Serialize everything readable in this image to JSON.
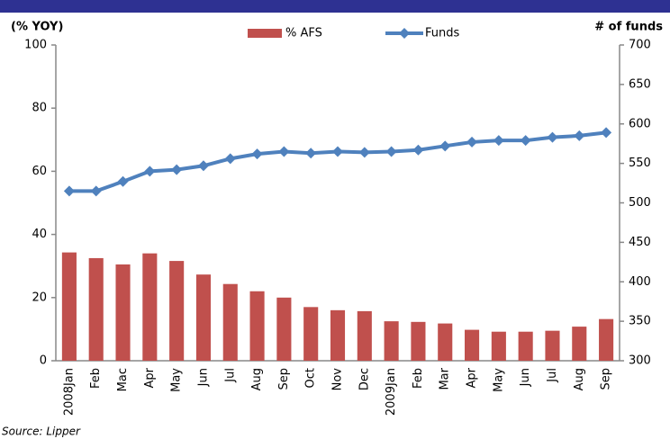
{
  "chart_data": {
    "type": "bar_line",
    "y_label": "(% YOY)",
    "y2_label": "# of funds",
    "source": "Source: Lipper",
    "categories": [
      "2008Jan",
      "Feb",
      "Mac",
      "Apr",
      "May",
      "Jun",
      "Jul",
      "Aug",
      "Sep",
      "Oct",
      "Nov",
      "Dec",
      "2009Jan",
      "Feb",
      "Mar",
      "Apr",
      "May",
      "Jun",
      "Jul",
      "Aug",
      "Sep"
    ],
    "series": [
      {
        "name": "% AFS",
        "type": "bar",
        "color": "#c0504d",
        "values": [
          34.3,
          32.5,
          30.5,
          34,
          31.6,
          27.3,
          24.3,
          22,
          20,
          17,
          16,
          15.7,
          12.5,
          12.3,
          11.8,
          9.8,
          9.2,
          9.2,
          9.5,
          10.8,
          13.2
        ]
      },
      {
        "name": "Funds",
        "type": "line",
        "axis": "y2",
        "color": "#4f81bd",
        "values": [
          515,
          515,
          527,
          540,
          542,
          547,
          556,
          562,
          565,
          563,
          565,
          564,
          565,
          567,
          572,
          577,
          579,
          579,
          583,
          585,
          589
        ]
      }
    ],
    "ylim": [
      0,
      100
    ],
    "yticks": [
      0,
      20,
      40,
      60,
      80,
      100
    ],
    "y2lim": [
      300,
      700
    ],
    "y2ticks": [
      300,
      350,
      400,
      450,
      500,
      550,
      600,
      650,
      700
    ]
  }
}
